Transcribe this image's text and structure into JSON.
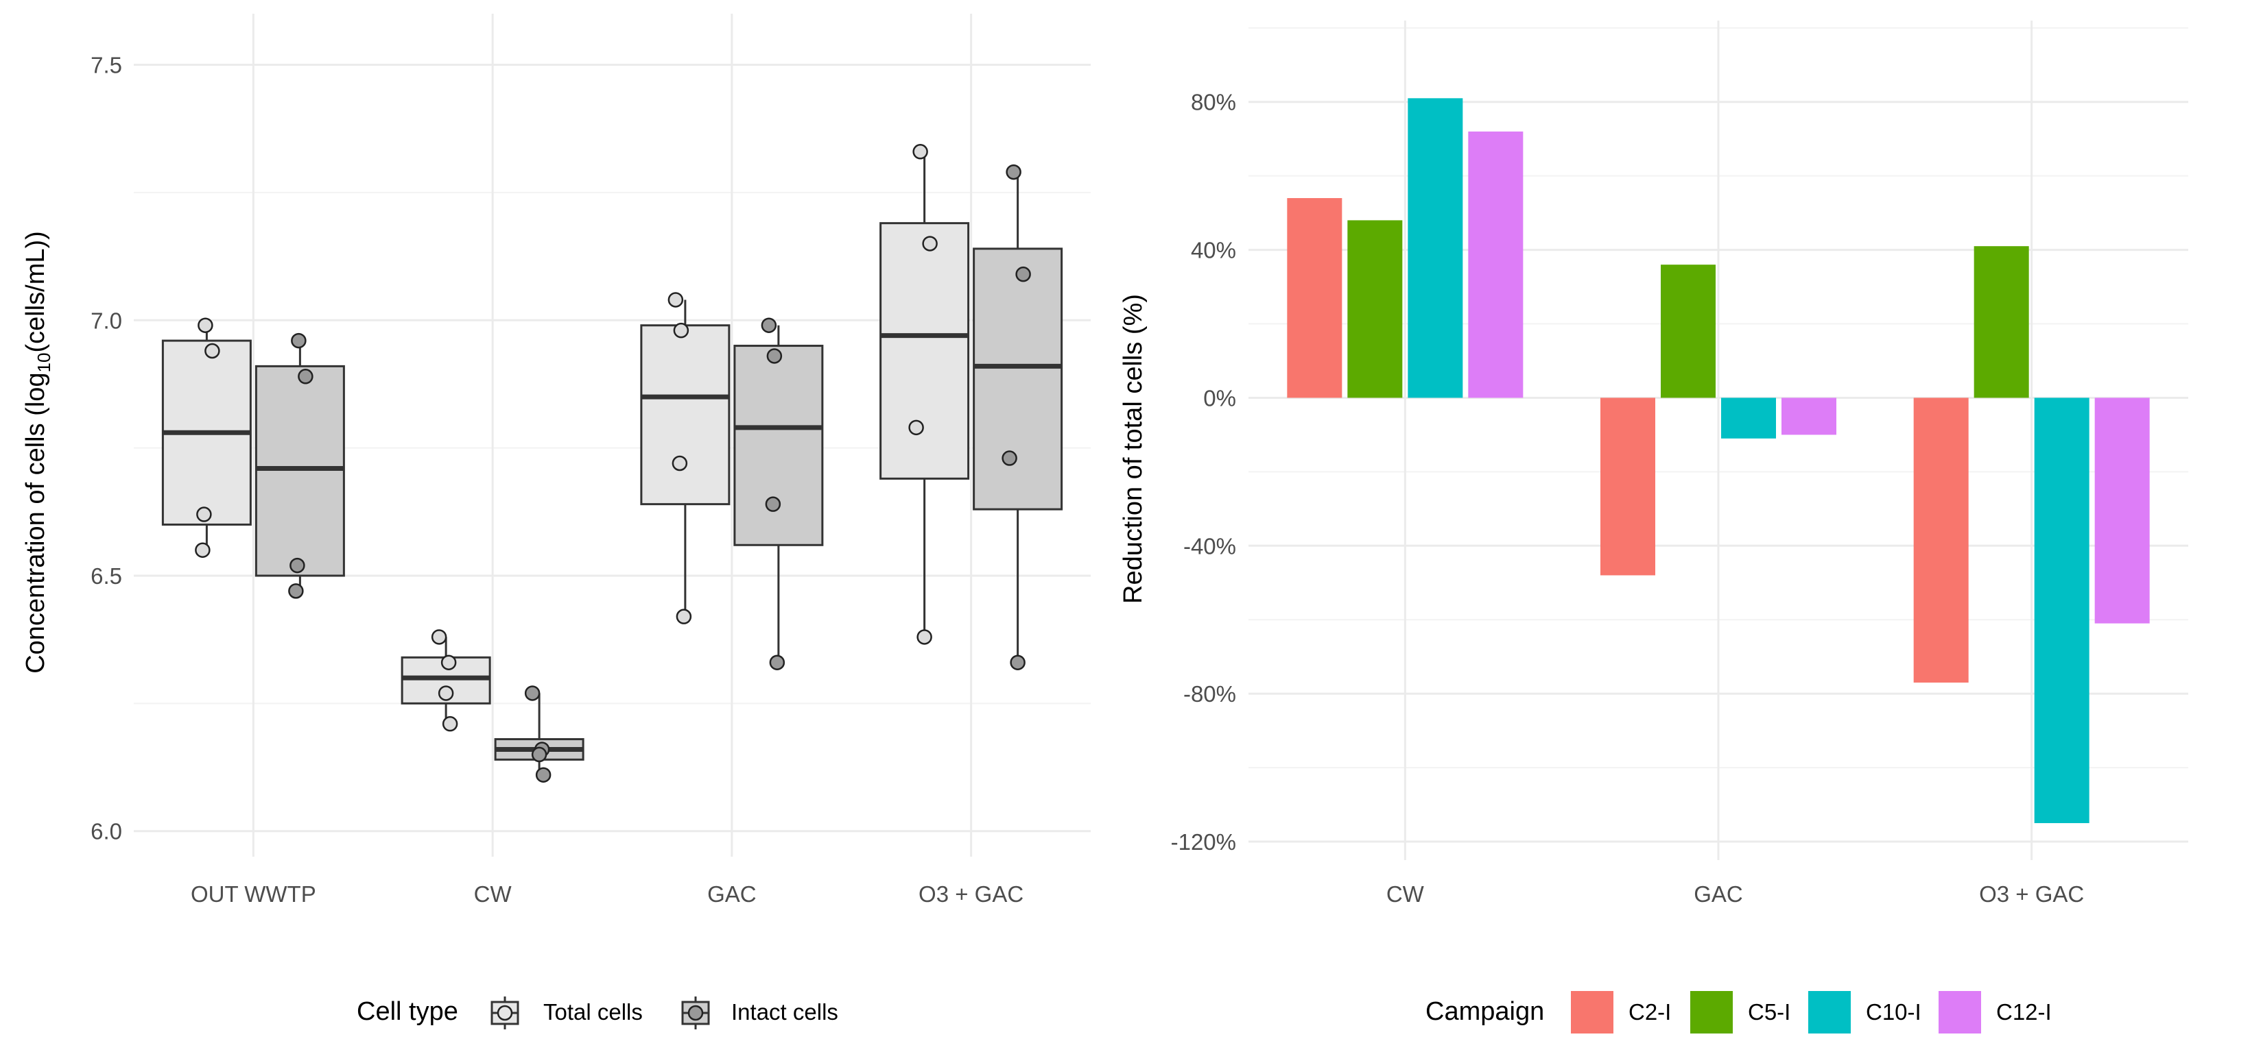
{
  "chart_data": [
    {
      "type": "box",
      "ylabel": {
        "before": "Concentration of cells (log",
        "sub": "10",
        "after": "(cells/mL))"
      },
      "xlabel": "",
      "ylim": [
        5.95,
        7.6
      ],
      "yticks": [
        "6.0",
        "6.5",
        "7.0",
        "7.5"
      ],
      "categories": [
        "OUT WWTP",
        "CW",
        "GAC",
        "O3 + GAC"
      ],
      "legend": {
        "title": "Cell type",
        "position": "bottom",
        "entries": [
          "Total cells",
          "Intact cells"
        ]
      },
      "series": [
        {
          "name": "Total cells",
          "fill": "#e6e6e6",
          "boxes": [
            {
              "min": 6.55,
              "q1": 6.6,
              "median": 6.78,
              "q3": 6.96,
              "max": 7.0
            },
            {
              "min": 6.21,
              "q1": 6.25,
              "median": 6.3,
              "q3": 6.34,
              "max": 6.38
            },
            {
              "min": 6.42,
              "q1": 6.64,
              "median": 6.85,
              "q3": 6.99,
              "max": 7.04
            },
            {
              "min": 6.38,
              "q1": 6.69,
              "median": 6.97,
              "q3": 7.19,
              "max": 7.33
            }
          ],
          "points": [
            [
              6.99,
              6.94,
              6.62,
              6.55
            ],
            [
              6.38,
              6.33,
              6.27,
              6.21
            ],
            [
              7.04,
              6.98,
              6.72,
              6.42
            ],
            [
              7.33,
              7.15,
              6.79,
              6.38
            ]
          ]
        },
        {
          "name": "Intact cells",
          "fill": "#cccccc",
          "boxes": [
            {
              "min": 6.47,
              "q1": 6.5,
              "median": 6.71,
              "q3": 6.91,
              "max": 6.96
            },
            {
              "min": 6.11,
              "q1": 6.14,
              "median": 6.16,
              "q3": 6.18,
              "max": 6.27
            },
            {
              "min": 6.33,
              "q1": 6.56,
              "median": 6.79,
              "q3": 6.95,
              "max": 6.99
            },
            {
              "min": 6.33,
              "q1": 6.63,
              "median": 6.91,
              "q3": 7.14,
              "max": 7.29
            }
          ],
          "points": [
            [
              6.96,
              6.89,
              6.52,
              6.47
            ],
            [
              6.27,
              6.16,
              6.15,
              6.11
            ],
            [
              6.99,
              6.93,
              6.64,
              6.33
            ],
            [
              7.29,
              7.09,
              6.73,
              6.33
            ]
          ]
        }
      ]
    },
    {
      "type": "bar",
      "ylabel": "Reduction of total cells (%)",
      "xlabel": "",
      "ylim": [
        -125,
        102
      ],
      "yticks": [
        {
          "value": 80,
          "label": "80%"
        },
        {
          "value": 40,
          "label": "40%"
        },
        {
          "value": 0,
          "label": "0%"
        },
        {
          "value": -40,
          "label": "-40%"
        },
        {
          "value": -80,
          "label": "-80%"
        },
        {
          "value": -120,
          "label": "-120%"
        }
      ],
      "categories": [
        "CW",
        "GAC",
        "O3 + GAC"
      ],
      "legend": {
        "title": "Campaign",
        "position": "bottom",
        "entries": [
          "C2-I",
          "C5-I",
          "C10-I",
          "C12-I"
        ]
      },
      "series": [
        {
          "name": "C2-I",
          "color": "#F8766D",
          "values": [
            54,
            -48,
            -77
          ]
        },
        {
          "name": "C5-I",
          "color": "#5CAA00",
          "values": [
            48,
            36,
            41
          ]
        },
        {
          "name": "C10-I",
          "color": "#00BFC4",
          "values": [
            81,
            -11,
            -115
          ]
        },
        {
          "name": "C12-I",
          "color": "#DD7DF7",
          "values": [
            72,
            -10,
            -61
          ]
        }
      ]
    }
  ]
}
